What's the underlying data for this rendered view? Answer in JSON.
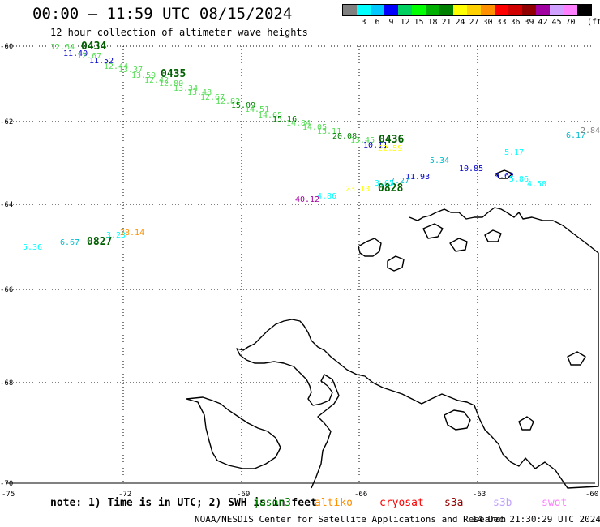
{
  "header": {
    "title": "00:00 – 11:59 UTC 08/15/2024",
    "subtitle": "12 hour collection of altimeter wave heights"
  },
  "legend": {
    "unit": "(ft)",
    "bins": [
      {
        "color": "#808080",
        "label": ""
      },
      {
        "color": "#00ffff",
        "label": "3"
      },
      {
        "color": "#00c8ff",
        "label": "6"
      },
      {
        "color": "#0000ff",
        "label": "9"
      },
      {
        "color": "#00d060",
        "label": "12"
      },
      {
        "color": "#00ff00",
        "label": "15"
      },
      {
        "color": "#00b000",
        "label": "18"
      },
      {
        "color": "#008000",
        "label": "21"
      },
      {
        "color": "#ffff00",
        "label": "24"
      },
      {
        "color": "#ffd000",
        "label": "27"
      },
      {
        "color": "#ff9000",
        "label": "30"
      },
      {
        "color": "#ff0000",
        "label": "33"
      },
      {
        "color": "#d00000",
        "label": "36"
      },
      {
        "color": "#900000",
        "label": "39"
      },
      {
        "color": "#a000a0",
        "label": "42"
      },
      {
        "color": "#d0a0ff",
        "label": "45"
      },
      {
        "color": "#ff80ff",
        "label": "70"
      },
      {
        "color": "#000000",
        "label": ""
      }
    ]
  },
  "map": {
    "projection": "lon/lat grid",
    "lon_labels": [
      "-75",
      "-72",
      "-69",
      "-66",
      "-63",
      "-60"
    ],
    "lat_labels": [
      "-60",
      "-62",
      "-64",
      "-66",
      "-68",
      "-70"
    ],
    "grid_lines": true
  },
  "tracks": [
    {
      "id": "0434",
      "color": "#006000"
    },
    {
      "id": "0435",
      "color": "#006000"
    },
    {
      "id": "0436",
      "color": "#006000"
    },
    {
      "id": "0828",
      "color": "#006000"
    },
    {
      "id": "0827",
      "color": "#006000"
    }
  ],
  "wave_labels": [
    {
      "text": "12.64",
      "color": "#55dd55"
    },
    {
      "text": "11.40",
      "color": "#0000cc"
    },
    {
      "text": "12.67",
      "color": "#55dd55"
    },
    {
      "text": "11.52",
      "color": "#0000cc"
    },
    {
      "text": "12.44",
      "color": "#55dd55"
    },
    {
      "text": "13.37",
      "color": "#55dd55"
    },
    {
      "text": "13.59",
      "color": "#55dd55"
    },
    {
      "text": "12.42",
      "color": "#55dd55"
    },
    {
      "text": "12.80",
      "color": "#55dd55"
    },
    {
      "text": "13.34",
      "color": "#55dd55"
    },
    {
      "text": "13.48",
      "color": "#55dd55"
    },
    {
      "text": "12.67",
      "color": "#55dd55"
    },
    {
      "text": "12.82",
      "color": "#55dd55"
    },
    {
      "text": "15.09",
      "color": "#008000"
    },
    {
      "text": "14.51",
      "color": "#55dd55"
    },
    {
      "text": "14.65",
      "color": "#55dd55"
    },
    {
      "text": "15.16",
      "color": "#008000"
    },
    {
      "text": "14.84",
      "color": "#55dd55"
    },
    {
      "text": "14.05",
      "color": "#55dd55"
    },
    {
      "text": "13.11",
      "color": "#55dd55"
    },
    {
      "text": "20.08",
      "color": "#008000"
    },
    {
      "text": "13.45",
      "color": "#55dd55"
    },
    {
      "text": "10.11",
      "color": "#0000cc"
    },
    {
      "text": "22.59",
      "color": "#ffff00"
    },
    {
      "text": "6.17",
      "color": "#00bbcc"
    },
    {
      "text": "2.84",
      "color": "#808080"
    },
    {
      "text": "5.34",
      "color": "#00bbcc"
    },
    {
      "text": "5.17",
      "color": "#00ffff"
    },
    {
      "text": "10.85",
      "color": "#0000cc"
    },
    {
      "text": "11.93",
      "color": "#0000cc"
    },
    {
      "text": "9.62",
      "color": "#0000cc"
    },
    {
      "text": "5.86",
      "color": "#00ffff"
    },
    {
      "text": "4.58",
      "color": "#00ffff"
    },
    {
      "text": "3.65",
      "color": "#00ffff"
    },
    {
      "text": "7.27",
      "color": "#00bbcc"
    },
    {
      "text": "23.10",
      "color": "#ffff00"
    },
    {
      "text": "4.86",
      "color": "#00ffff"
    },
    {
      "text": "40.12",
      "color": "#a000a0"
    },
    {
      "text": "3.23",
      "color": "#00ffff"
    },
    {
      "text": "28.14",
      "color": "#ff9000"
    },
    {
      "text": "6.67",
      "color": "#00bbcc"
    },
    {
      "text": "5.36",
      "color": "#00ffff"
    }
  ],
  "note": {
    "text": "note: 1) Time is in UTC; 2) SWH is in feet",
    "missions": [
      {
        "name": "jason3",
        "color": "#008000"
      },
      {
        "name": "altiko",
        "color": "#ff9000"
      },
      {
        "name": "cryosat",
        "color": "#ff0000"
      },
      {
        "name": "s3a",
        "color": "#900000"
      },
      {
        "name": "s3b",
        "color": "#c0a0ff"
      },
      {
        "name": "swot",
        "color": "#ff80ff"
      }
    ]
  },
  "footer": {
    "credit": "NOAA/NESDIS Center for Satellite Applications and Research",
    "generated": "14 Dec 21:30:29 UTC 2024"
  }
}
